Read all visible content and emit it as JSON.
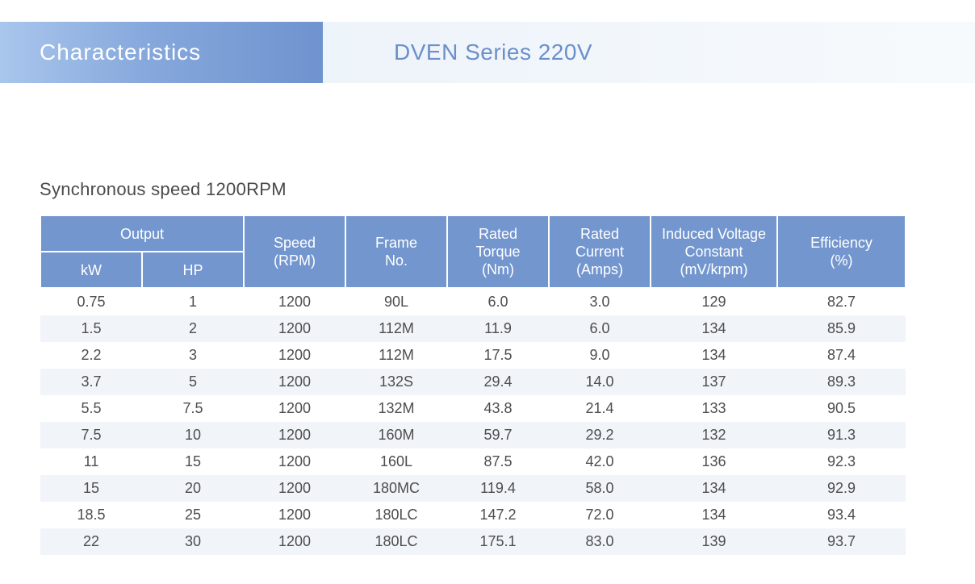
{
  "banner": {
    "left_title": "Characteristics",
    "right_title": "DVEN Series 220V"
  },
  "section_title": "Synchronous speed 1200RPM",
  "table": {
    "headers": {
      "output": "Output",
      "kw": "kW",
      "hp": "HP",
      "speed": [
        "Speed",
        "(RPM)"
      ],
      "frame": [
        "Frame",
        "No."
      ],
      "torque": [
        "Rated",
        "Torque",
        "(Nm)"
      ],
      "current": [
        "Rated",
        "Current",
        "(Amps)"
      ],
      "voltage": [
        "Induced Voltage",
        "Constant",
        "(mV/krpm)"
      ],
      "efficiency": [
        "Efficiency",
        "(%)"
      ]
    },
    "rows": [
      [
        "0.75",
        "1",
        "1200",
        "90L",
        "6.0",
        "3.0",
        "129",
        "82.7"
      ],
      [
        "1.5",
        "2",
        "1200",
        "112M",
        "11.9",
        "6.0",
        "134",
        "85.9"
      ],
      [
        "2.2",
        "3",
        "1200",
        "112M",
        "17.5",
        "9.0",
        "134",
        "87.4"
      ],
      [
        "3.7",
        "5",
        "1200",
        "132S",
        "29.4",
        "14.0",
        "137",
        "89.3"
      ],
      [
        "5.5",
        "7.5",
        "1200",
        "132M",
        "43.8",
        "21.4",
        "133",
        "90.5"
      ],
      [
        "7.5",
        "10",
        "1200",
        "160M",
        "59.7",
        "29.2",
        "132",
        "91.3"
      ],
      [
        "11",
        "15",
        "1200",
        "160L",
        "87.5",
        "42.0",
        "136",
        "92.3"
      ],
      [
        "15",
        "20",
        "1200",
        "180MC",
        "119.4",
        "58.0",
        "134",
        "92.9"
      ],
      [
        "18.5",
        "25",
        "1200",
        "180LC",
        "147.2",
        "72.0",
        "134",
        "93.4"
      ],
      [
        "22",
        "30",
        "1200",
        "180LC",
        "175.1",
        "83.0",
        "139",
        "93.7"
      ]
    ]
  }
}
